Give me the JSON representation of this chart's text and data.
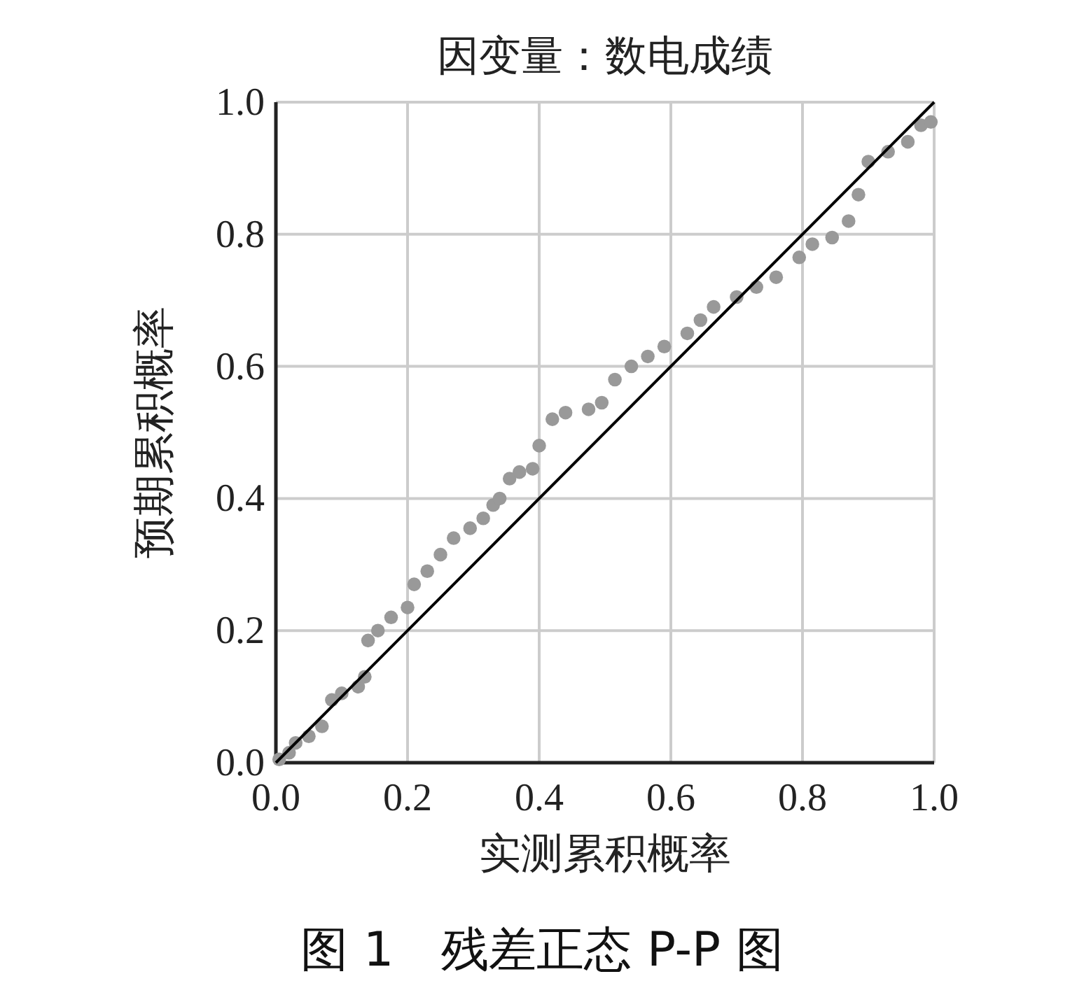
{
  "chart_data": {
    "type": "scatter",
    "title": "因变量：数电成绩",
    "xlabel": "实测累积概率",
    "ylabel": "预期累积概率",
    "annotations": [
      "图 1　残差正态 P-P 图"
    ],
    "xlim": [
      0,
      1
    ],
    "ylim": [
      0,
      1
    ],
    "xticks": [
      {
        "value": 0,
        "label": "0.0"
      },
      {
        "value": 0.2,
        "label": "0.2"
      },
      {
        "value": 0.4,
        "label": "0.4"
      },
      {
        "value": 0.6,
        "label": "0.6"
      },
      {
        "value": 0.8,
        "label": "0.8"
      },
      {
        "value": 1,
        "label": "1.0"
      }
    ],
    "yticks": [
      {
        "value": 0,
        "label": "0.0"
      },
      {
        "value": 0.2,
        "label": "0.2"
      },
      {
        "value": 0.4,
        "label": "0.4"
      },
      {
        "value": 0.6,
        "label": "0.6"
      },
      {
        "value": 0.8,
        "label": "0.8"
      },
      {
        "value": 1,
        "label": "1.0"
      }
    ],
    "grid": true,
    "marker": "circle",
    "series": [
      {
        "color": "#999999",
        "x": [
          0.005,
          0.02,
          0.03,
          0.05,
          0.07,
          0.085,
          0.1,
          0.125,
          0.135,
          0.14,
          0.155,
          0.175,
          0.2,
          0.21,
          0.23,
          0.25,
          0.27,
          0.295,
          0.315,
          0.33,
          0.34,
          0.355,
          0.37,
          0.39,
          0.4,
          0.42,
          0.44,
          0.475,
          0.495,
          0.515,
          0.54,
          0.565,
          0.59,
          0.625,
          0.645,
          0.665,
          0.7,
          0.73,
          0.76,
          0.795,
          0.815,
          0.845,
          0.87,
          0.885,
          0.9,
          0.93,
          0.96,
          0.98,
          0.995
        ],
        "values": [
          0.005,
          0.015,
          0.03,
          0.04,
          0.055,
          0.095,
          0.105,
          0.115,
          0.13,
          0.185,
          0.2,
          0.22,
          0.235,
          0.27,
          0.29,
          0.315,
          0.34,
          0.355,
          0.37,
          0.39,
          0.4,
          0.43,
          0.44,
          0.445,
          0.48,
          0.52,
          0.53,
          0.535,
          0.545,
          0.58,
          0.6,
          0.615,
          0.63,
          0.65,
          0.67,
          0.69,
          0.705,
          0.72,
          0.735,
          0.765,
          0.785,
          0.795,
          0.82,
          0.86,
          0.91,
          0.925,
          0.94,
          0.965,
          0.97
        ]
      },
      {
        "type": "line",
        "color": "#000000",
        "marker": "none",
        "x": [
          0,
          1
        ],
        "values": [
          0,
          1
        ]
      }
    ]
  }
}
